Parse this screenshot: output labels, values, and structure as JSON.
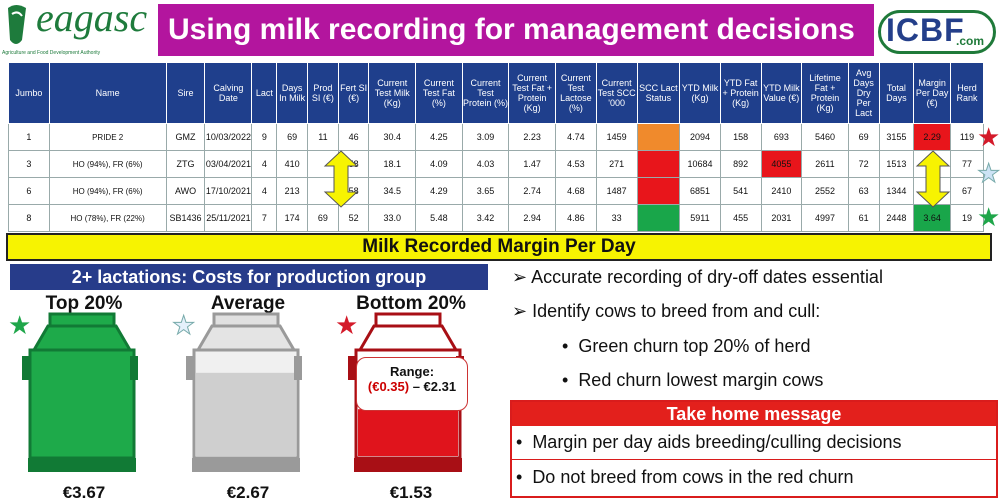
{
  "header": {
    "left_logo_text": "eagasc",
    "left_logo_tagline": "Agriculture and Food Development Authority",
    "title": "Using milk recording for management decisions",
    "right_logo_text": "ICBF",
    "right_logo_sub": ".com"
  },
  "table": {
    "columns": [
      "Jumbo",
      "Name",
      "Sire",
      "Calving Date",
      "Lact",
      "Days In Milk",
      "Prod SI (€)",
      "Fert SI (€)",
      "Current Test Milk (Kg)",
      "Current Test Fat (%)",
      "Current Test Protein (%)",
      "Current Test Fat + Protein (Kg)",
      "Current Test Lactose (%)",
      "Current Test SCC '000",
      "SCC Lact Status",
      "YTD Milk (Kg)",
      "YTD Fat + Protein (Kg)",
      "YTD Milk Value (€)",
      "Lifetime Fat + Protein (Kg)",
      "Avg Days Dry Per Lact",
      "Total Days",
      "Margin Per Day (€)",
      "Herd Rank"
    ],
    "rows": [
      [
        "1",
        "PRIDE 2",
        "GMZ",
        "10/03/2022",
        "9",
        "69",
        "11",
        "46",
        "30.4",
        "4.25",
        "3.09",
        "2.23",
        "4.74",
        "1459",
        "",
        "2094",
        "158",
        "693",
        "5460",
        "69",
        "3155",
        "2.29",
        "119"
      ],
      [
        "3",
        "HO (94%), FR (6%)",
        "ZTG",
        "03/04/2021",
        "4",
        "410",
        "",
        "58",
        "18.1",
        "4.09",
        "4.03",
        "1.47",
        "4.53",
        "271",
        "",
        "10684",
        "892",
        "4055",
        "2611",
        "72",
        "1513",
        "",
        "77"
      ],
      [
        "6",
        "HO (94%), FR (6%)",
        "AWO",
        "17/10/2021",
        "4",
        "213",
        "",
        "58",
        "34.5",
        "4.29",
        "3.65",
        "2.74",
        "4.68",
        "1487",
        "",
        "6851",
        "541",
        "2410",
        "2552",
        "63",
        "1344",
        "",
        "67"
      ],
      [
        "8",
        "HO (78%), FR (22%)",
        "SB1436",
        "25/11/2021",
        "7",
        "174",
        "69",
        "52",
        "33.0",
        "5.48",
        "3.42",
        "2.94",
        "4.86",
        "33",
        "",
        "5911",
        "455",
        "2031",
        "4997",
        "61",
        "2448",
        "3.64",
        "19"
      ]
    ],
    "scc_status_colors": [
      "#f08a2c",
      "#e8151b",
      "#e8151b",
      "#19a64a"
    ],
    "highlight_colors": {
      "red": "#e8151b",
      "green": "#19a64a",
      "arrow": "#f7f301"
    }
  },
  "banner": {
    "text": "Milk Recorded Margin Per Day"
  },
  "costs": {
    "heading": "2+ lactations: Costs for production group",
    "churns": [
      {
        "label": "Top 20%",
        "value": "€3.67",
        "color": "#1eaa4a",
        "star": "green-star-icon"
      },
      {
        "label": "Average",
        "value": "€2.67",
        "color": "#cfcfcf",
        "star": "light-blue-star-icon"
      },
      {
        "label": "Bottom 20%",
        "value": "€1.53",
        "color": "#e0141c",
        "star": "red-star-icon"
      }
    ],
    "range_label": "Range:",
    "range_low": "(€0.35)",
    "range_high": "– €2.31"
  },
  "notes": {
    "bullet1": "Accurate recording of dry-off dates essential",
    "bullet2": "Identify cows to breed from and cull:",
    "sub1": "Green churn top 20% of herd",
    "sub2": "Red churn lowest margin cows"
  },
  "take_home": {
    "title": "Take home message",
    "items": [
      "Margin per day aids breeding/culling decisions",
      "Do not breed from cows in the red churn"
    ]
  }
}
